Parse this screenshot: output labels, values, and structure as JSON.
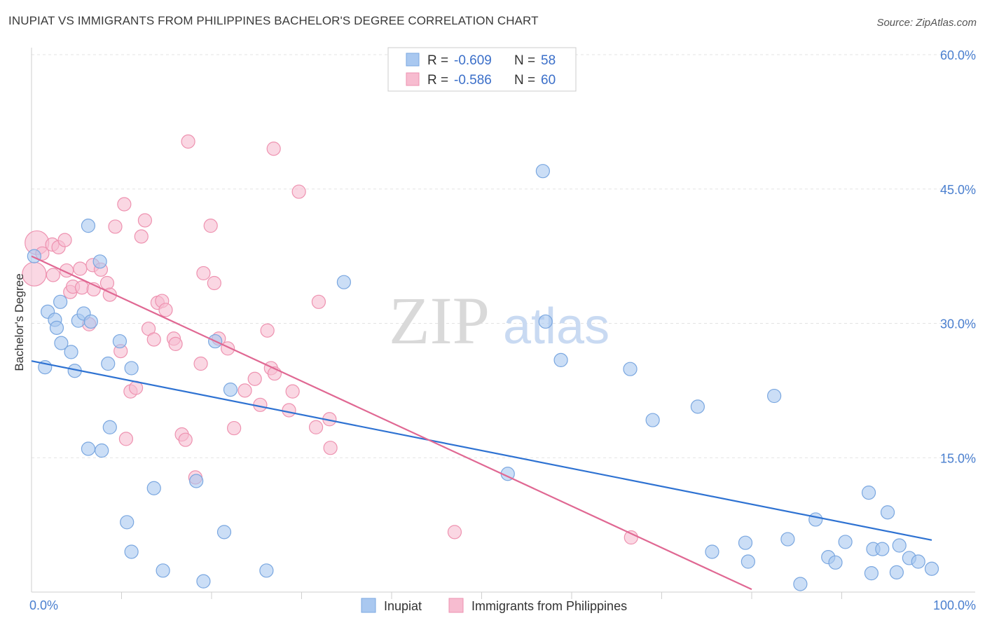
{
  "title": "INUPIAT VS IMMIGRANTS FROM PHILIPPINES BACHELOR'S DEGREE CORRELATION CHART",
  "source": "Source: ZipAtlas.com",
  "watermark": {
    "zip": "ZIP",
    "atlas": "atlas"
  },
  "chart_data": {
    "type": "scatter",
    "ylabel": "Bachelor's Degree",
    "xlim": [
      0,
      100
    ],
    "ylim": [
      0,
      60
    ],
    "x_tick_labels": [
      "0.0%",
      "100.0%"
    ],
    "y_ticks": [
      15,
      30,
      45,
      60
    ],
    "y_tick_labels": [
      "15.0%",
      "30.0%",
      "45.0%",
      "60.0%"
    ],
    "legend": {
      "placement": "top-center",
      "entries": [
        {
          "r_label": "R = ",
          "r_value": "-0.609",
          "n_label": "N = ",
          "n_value": "58"
        },
        {
          "r_label": "R = ",
          "r_value": "-0.586",
          "n_label": "N = ",
          "n_value": "60"
        }
      ]
    },
    "series": [
      {
        "name": "Inupiat",
        "color": "#a9c8f0",
        "stroke": "#7aa7e0",
        "line_color": "#2e72d2",
        "trend": [
          [
            0,
            25.8
          ],
          [
            100,
            5.8
          ]
        ],
        "points": [
          [
            0.3,
            37.5
          ],
          [
            1.5,
            25.1
          ],
          [
            1.8,
            31.3
          ],
          [
            2.6,
            30.4
          ],
          [
            3.2,
            32.4
          ],
          [
            2.8,
            29.5
          ],
          [
            3.3,
            27.8
          ],
          [
            4.4,
            26.8
          ],
          [
            4.8,
            24.7
          ],
          [
            5.2,
            30.3
          ],
          [
            5.8,
            31.1
          ],
          [
            6.3,
            40.9
          ],
          [
            6.6,
            30.2
          ],
          [
            6.3,
            16.0
          ],
          [
            7.6,
            36.9
          ],
          [
            7.8,
            15.8
          ],
          [
            8.5,
            25.5
          ],
          [
            8.7,
            18.4
          ],
          [
            9.8,
            28.0
          ],
          [
            10.6,
            7.8
          ],
          [
            11.1,
            25.0
          ],
          [
            11.1,
            4.5
          ],
          [
            13.6,
            11.6
          ],
          [
            14.6,
            2.4
          ],
          [
            19.1,
            1.2
          ],
          [
            18.3,
            12.4
          ],
          [
            20.4,
            28.0
          ],
          [
            21.4,
            6.7
          ],
          [
            22.1,
            22.6
          ],
          [
            26.1,
            2.4
          ],
          [
            34.7,
            34.6
          ],
          [
            52.9,
            13.2
          ],
          [
            56.8,
            47.0
          ],
          [
            57.1,
            30.2
          ],
          [
            58.8,
            25.9
          ],
          [
            66.5,
            24.9
          ],
          [
            69.0,
            19.2
          ],
          [
            74.0,
            20.7
          ],
          [
            75.6,
            4.5
          ],
          [
            79.3,
            5.5
          ],
          [
            79.6,
            3.4
          ],
          [
            82.5,
            21.9
          ],
          [
            84.0,
            5.9
          ],
          [
            85.4,
            0.9
          ],
          [
            87.1,
            8.1
          ],
          [
            88.5,
            3.9
          ],
          [
            89.3,
            3.3
          ],
          [
            90.4,
            5.6
          ],
          [
            93.0,
            11.1
          ],
          [
            93.3,
            2.1
          ],
          [
            93.5,
            4.8
          ],
          [
            94.5,
            4.8
          ],
          [
            95.1,
            8.9
          ],
          [
            96.1,
            2.2
          ],
          [
            96.4,
            5.2
          ],
          [
            97.5,
            3.8
          ],
          [
            98.5,
            3.4
          ],
          [
            100.0,
            2.6
          ]
        ]
      },
      {
        "name": "Immigrants from Philippines",
        "color": "#f7bcd0",
        "stroke": "#ee92b0",
        "line_color": "#e06893",
        "trend": [
          [
            0,
            37.5
          ],
          [
            80,
            0.3
          ]
        ],
        "points": [
          [
            0.3,
            35.5
          ],
          [
            0.6,
            39.0
          ],
          [
            1.2,
            37.8
          ],
          [
            2.3,
            38.8
          ],
          [
            2.4,
            35.4
          ],
          [
            3.0,
            38.5
          ],
          [
            3.7,
            39.3
          ],
          [
            3.9,
            35.9
          ],
          [
            4.3,
            33.5
          ],
          [
            4.6,
            34.1
          ],
          [
            5.4,
            36.1
          ],
          [
            5.6,
            34.0
          ],
          [
            6.4,
            29.9
          ],
          [
            6.8,
            36.5
          ],
          [
            6.9,
            33.8
          ],
          [
            7.7,
            36.0
          ],
          [
            8.4,
            34.5
          ],
          [
            8.7,
            33.2
          ],
          [
            9.3,
            40.8
          ],
          [
            9.9,
            26.9
          ],
          [
            10.3,
            43.3
          ],
          [
            10.5,
            17.1
          ],
          [
            11.0,
            22.4
          ],
          [
            11.6,
            22.8
          ],
          [
            12.2,
            39.7
          ],
          [
            12.6,
            41.5
          ],
          [
            13.0,
            29.4
          ],
          [
            13.6,
            28.2
          ],
          [
            14.0,
            32.3
          ],
          [
            14.5,
            32.5
          ],
          [
            14.9,
            31.5
          ],
          [
            15.8,
            28.3
          ],
          [
            16.0,
            27.7
          ],
          [
            16.7,
            17.6
          ],
          [
            17.1,
            17.0
          ],
          [
            17.4,
            50.3
          ],
          [
            18.2,
            12.8
          ],
          [
            18.8,
            25.5
          ],
          [
            19.1,
            35.6
          ],
          [
            19.9,
            40.9
          ],
          [
            20.3,
            34.5
          ],
          [
            20.8,
            28.3
          ],
          [
            21.8,
            27.2
          ],
          [
            22.5,
            18.3
          ],
          [
            23.7,
            22.5
          ],
          [
            24.8,
            23.8
          ],
          [
            25.4,
            20.9
          ],
          [
            26.2,
            29.2
          ],
          [
            26.6,
            25.0
          ],
          [
            27.0,
            24.4
          ],
          [
            26.9,
            49.5
          ],
          [
            28.6,
            20.3
          ],
          [
            29.0,
            22.4
          ],
          [
            29.7,
            44.7
          ],
          [
            31.6,
            18.4
          ],
          [
            31.9,
            32.4
          ],
          [
            33.1,
            19.3
          ],
          [
            33.2,
            16.1
          ],
          [
            47.0,
            6.7
          ],
          [
            66.6,
            6.1
          ]
        ]
      }
    ]
  }
}
